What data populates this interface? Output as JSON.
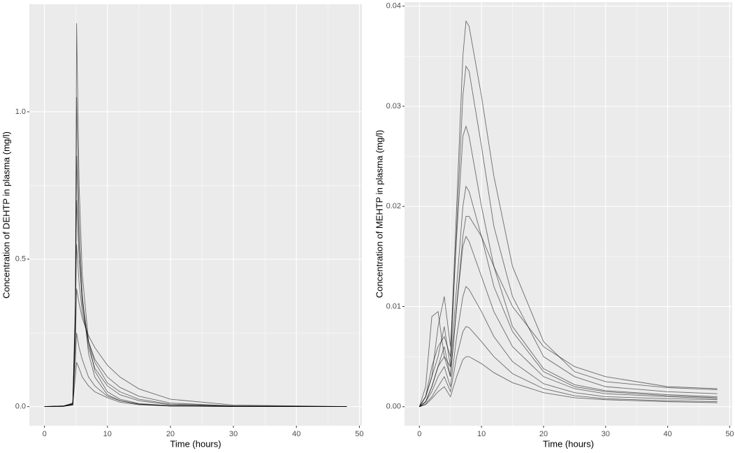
{
  "chart_data": [
    {
      "type": "line",
      "xlabel": "Time (hours)",
      "ylabel": "Concentration of DEHTP in plasma (mg/l)",
      "xlim": [
        -2.4,
        50.4
      ],
      "ylim": [
        -0.065,
        1.365
      ],
      "xticks": [
        0,
        10,
        20,
        30,
        40,
        50
      ],
      "yticks": [
        {
          "value": 0,
          "label": "0.0"
        },
        {
          "value": 0.5,
          "label": "0.5"
        },
        {
          "value": 1,
          "label": "1.0"
        }
      ],
      "grid": true,
      "x": [
        0,
        3,
        4.5,
        4.9,
        5.1,
        5.5,
        6,
        7,
        8,
        10,
        12,
        15,
        20,
        30,
        48
      ],
      "series": [
        {
          "color": "#000000",
          "values": [
            0,
            0.001,
            0.005,
            0.3,
            1.3,
            0.75,
            0.45,
            0.22,
            0.12,
            0.05,
            0.025,
            0.01,
            0.003,
            0.001,
            0
          ]
        },
        {
          "color": "#000000",
          "values": [
            0,
            0.001,
            0.005,
            0.25,
            1.05,
            0.62,
            0.38,
            0.18,
            0.1,
            0.04,
            0.02,
            0.008,
            0.002,
            0.001,
            0
          ]
        },
        {
          "color": "#000000",
          "values": [
            0,
            0.002,
            0.008,
            0.3,
            0.85,
            0.55,
            0.35,
            0.2,
            0.13,
            0.07,
            0.04,
            0.02,
            0.006,
            0.001,
            0
          ]
        },
        {
          "color": "#000000",
          "values": [
            0,
            0.001,
            0.01,
            0.35,
            0.7,
            0.5,
            0.36,
            0.22,
            0.15,
            0.08,
            0.05,
            0.025,
            0.008,
            0.002,
            0
          ]
        },
        {
          "color": "#000000",
          "values": [
            0,
            0.002,
            0.01,
            0.3,
            0.55,
            0.42,
            0.32,
            0.22,
            0.16,
            0.1,
            0.065,
            0.035,
            0.012,
            0.002,
            0
          ]
        },
        {
          "color": "#000000",
          "values": [
            0,
            0.001,
            0.01,
            0.2,
            0.4,
            0.35,
            0.3,
            0.24,
            0.2,
            0.14,
            0.1,
            0.06,
            0.025,
            0.005,
            0
          ]
        },
        {
          "color": "#000000",
          "values": [
            0,
            0.002,
            0.012,
            0.15,
            0.25,
            0.2,
            0.16,
            0.1,
            0.07,
            0.035,
            0.02,
            0.008,
            0.002,
            0,
            0
          ]
        },
        {
          "color": "#000000",
          "values": [
            0,
            0.001,
            0.008,
            0.1,
            0.15,
            0.13,
            0.1,
            0.07,
            0.05,
            0.03,
            0.015,
            0.006,
            0.002,
            0,
            0
          ]
        }
      ]
    },
    {
      "type": "line",
      "xlabel": "Time (hours)",
      "ylabel": "Concentration of MEHTP in plasma (mg/l)",
      "xlim": [
        -2.4,
        50.4
      ],
      "ylim": [
        -0.0019,
        0.0404
      ],
      "xticks": [
        0,
        10,
        20,
        30,
        40,
        50
      ],
      "yticks": [
        {
          "value": 0,
          "label": "0.00"
        },
        0.01,
        0.02,
        0.03,
        0.04
      ],
      "grid": true,
      "x": [
        0,
        1,
        2,
        3,
        4,
        5,
        6,
        7,
        7.5,
        8,
        10,
        12,
        15,
        20,
        25,
        30,
        40,
        48
      ],
      "series": [
        {
          "color": "#000000",
          "values": [
            0,
            0.001,
            0.004,
            0.006,
            0.007,
            0.005,
            0.02,
            0.035,
            0.0385,
            0.038,
            0.031,
            0.023,
            0.014,
            0.0065,
            0.0035,
            0.0025,
            0.0019,
            0.0017
          ]
        },
        {
          "color": "#000000",
          "values": [
            0,
            0.002,
            0.009,
            0.0095,
            0.005,
            0.004,
            0.018,
            0.031,
            0.034,
            0.0335,
            0.026,
            0.018,
            0.011,
            0.005,
            0.003,
            0.002,
            0.0015,
            0.0013
          ]
        },
        {
          "color": "#000000",
          "values": [
            0,
            0.001,
            0.003,
            0.008,
            0.011,
            0.006,
            0.017,
            0.027,
            0.028,
            0.027,
            0.02,
            0.014,
            0.008,
            0.0038,
            0.0022,
            0.0016,
            0.0012,
            0.001
          ]
        },
        {
          "color": "#000000",
          "values": [
            0,
            0.001,
            0.003,
            0.005,
            0.008,
            0.004,
            0.012,
            0.02,
            0.022,
            0.0215,
            0.017,
            0.012,
            0.0075,
            0.0035,
            0.002,
            0.0015,
            0.0011,
            0.0009
          ]
        },
        {
          "color": "#000000",
          "values": [
            0,
            0.0005,
            0.002,
            0.004,
            0.006,
            0.003,
            0.01,
            0.016,
            0.017,
            0.0165,
            0.013,
            0.0095,
            0.006,
            0.003,
            0.0018,
            0.0013,
            0.001,
            0.0008
          ]
        },
        {
          "color": "#000000",
          "values": [
            0,
            0.0005,
            0.0015,
            0.003,
            0.004,
            0.002,
            0.007,
            0.011,
            0.012,
            0.0117,
            0.0095,
            0.007,
            0.0045,
            0.0023,
            0.0014,
            0.001,
            0.0008,
            0.0007
          ]
        },
        {
          "color": "#000000",
          "values": [
            0,
            0.0003,
            0.001,
            0.002,
            0.003,
            0.0015,
            0.005,
            0.0075,
            0.008,
            0.0079,
            0.0065,
            0.005,
            0.0033,
            0.0018,
            0.0011,
            0.0008,
            0.0006,
            0.0005
          ]
        },
        {
          "color": "#000000",
          "values": [
            0,
            0.0002,
            0.0008,
            0.0015,
            0.002,
            0.001,
            0.003,
            0.0047,
            0.005,
            0.005,
            0.0043,
            0.0034,
            0.0024,
            0.0014,
            0.0009,
            0.0007,
            0.0005,
            0.0004
          ]
        },
        {
          "color": "#000000",
          "values": [
            0,
            0.0005,
            0.002,
            0.004,
            0.005,
            0.003,
            0.01,
            0.017,
            0.019,
            0.019,
            0.017,
            0.014,
            0.01,
            0.006,
            0.004,
            0.003,
            0.002,
            0.0018
          ]
        }
      ]
    }
  ]
}
